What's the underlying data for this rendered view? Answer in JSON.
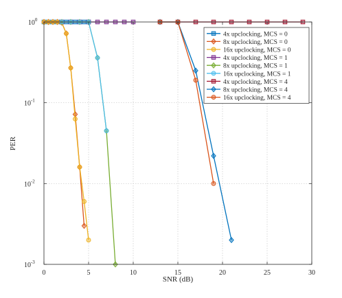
{
  "chart_data": {
    "type": "line",
    "xlabel": "SNR (dB)",
    "ylabel": "PER",
    "xlim": [
      0,
      30
    ],
    "ylim": [
      0.001,
      1
    ],
    "yscale": "log",
    "grid": true,
    "legend_position": "top-right",
    "x_ticks": [
      "0",
      "5",
      "10",
      "15",
      "20",
      "25",
      "30"
    ],
    "y_ticks": [
      {
        "value": 1,
        "mantissa": "10",
        "exponent": "0"
      },
      {
        "value": 0.1,
        "mantissa": "10",
        "exponent": "-1"
      },
      {
        "value": 0.01,
        "mantissa": "10",
        "exponent": "-2"
      },
      {
        "value": 0.001,
        "mantissa": "10",
        "exponent": "-3"
      }
    ],
    "series": [
      {
        "name": "4x upclocking, MCS = 0",
        "color": "#0072BD",
        "marker": "square",
        "x": [
          0,
          0.5,
          1,
          1.5,
          2,
          2.5,
          3,
          3.5,
          4,
          4.5,
          5
        ],
        "y": [
          1,
          1,
          1,
          1,
          1,
          1,
          1,
          1,
          1,
          1,
          1
        ]
      },
      {
        "name": "8x upclocking, MCS = 0",
        "color": "#D95319",
        "marker": "diamond",
        "x": [
          0,
          0.5,
          1,
          1.5,
          2,
          2.5,
          3,
          3.5,
          4,
          4.5
        ],
        "y": [
          1,
          1,
          1,
          1,
          0.98,
          0.72,
          0.27,
          0.072,
          0.016,
          0.003
        ]
      },
      {
        "name": "16x upclocking, MCS = 0",
        "color": "#EDB120",
        "marker": "circle",
        "x": [
          0,
          0.5,
          1,
          1.5,
          2,
          2.5,
          3,
          3.5,
          4,
          4.5,
          5
        ],
        "y": [
          1,
          1,
          1,
          1,
          0.98,
          0.72,
          0.27,
          0.063,
          0.016,
          0.006,
          0.002
        ]
      },
      {
        "name": "4x upclocking, MCS = 1",
        "color": "#7E2F8E",
        "marker": "square",
        "x": [
          2,
          3,
          4,
          5,
          6,
          7,
          8,
          9,
          10
        ],
        "y": [
          1,
          1,
          1,
          1,
          1,
          1,
          1,
          1,
          1
        ]
      },
      {
        "name": "8x upclocking, MCS = 1",
        "color": "#77AC30",
        "marker": "diamond",
        "x": [
          2,
          3,
          4,
          5,
          6,
          7,
          8
        ],
        "y": [
          1,
          1,
          1,
          1,
          0.36,
          0.045,
          0.001
        ]
      },
      {
        "name": "16x upclocking, MCS = 1",
        "color": "#4DBEEE",
        "marker": "circle",
        "x": [
          2,
          3,
          4,
          5,
          6,
          7
        ],
        "y": [
          1,
          1,
          1,
          1,
          0.36,
          0.045
        ]
      },
      {
        "name": "4x upclocking, MCS = 4",
        "color": "#A2142F",
        "marker": "square",
        "x": [
          13,
          15,
          17,
          19,
          21,
          23,
          25,
          27,
          29
        ],
        "y": [
          1,
          1,
          1,
          1,
          1,
          1,
          1,
          1,
          1
        ]
      },
      {
        "name": "8x upclocking, MCS = 4",
        "color": "#0072BD",
        "marker": "diamond",
        "x": [
          13,
          15,
          17,
          19,
          21
        ],
        "y": [
          1,
          1,
          0.25,
          0.022,
          0.002
        ]
      },
      {
        "name": "16x upclocking, MCS = 4",
        "color": "#D95319",
        "marker": "circle",
        "x": [
          13,
          15,
          17,
          19
        ],
        "y": [
          1,
          1,
          0.19,
          0.01
        ]
      }
    ]
  }
}
